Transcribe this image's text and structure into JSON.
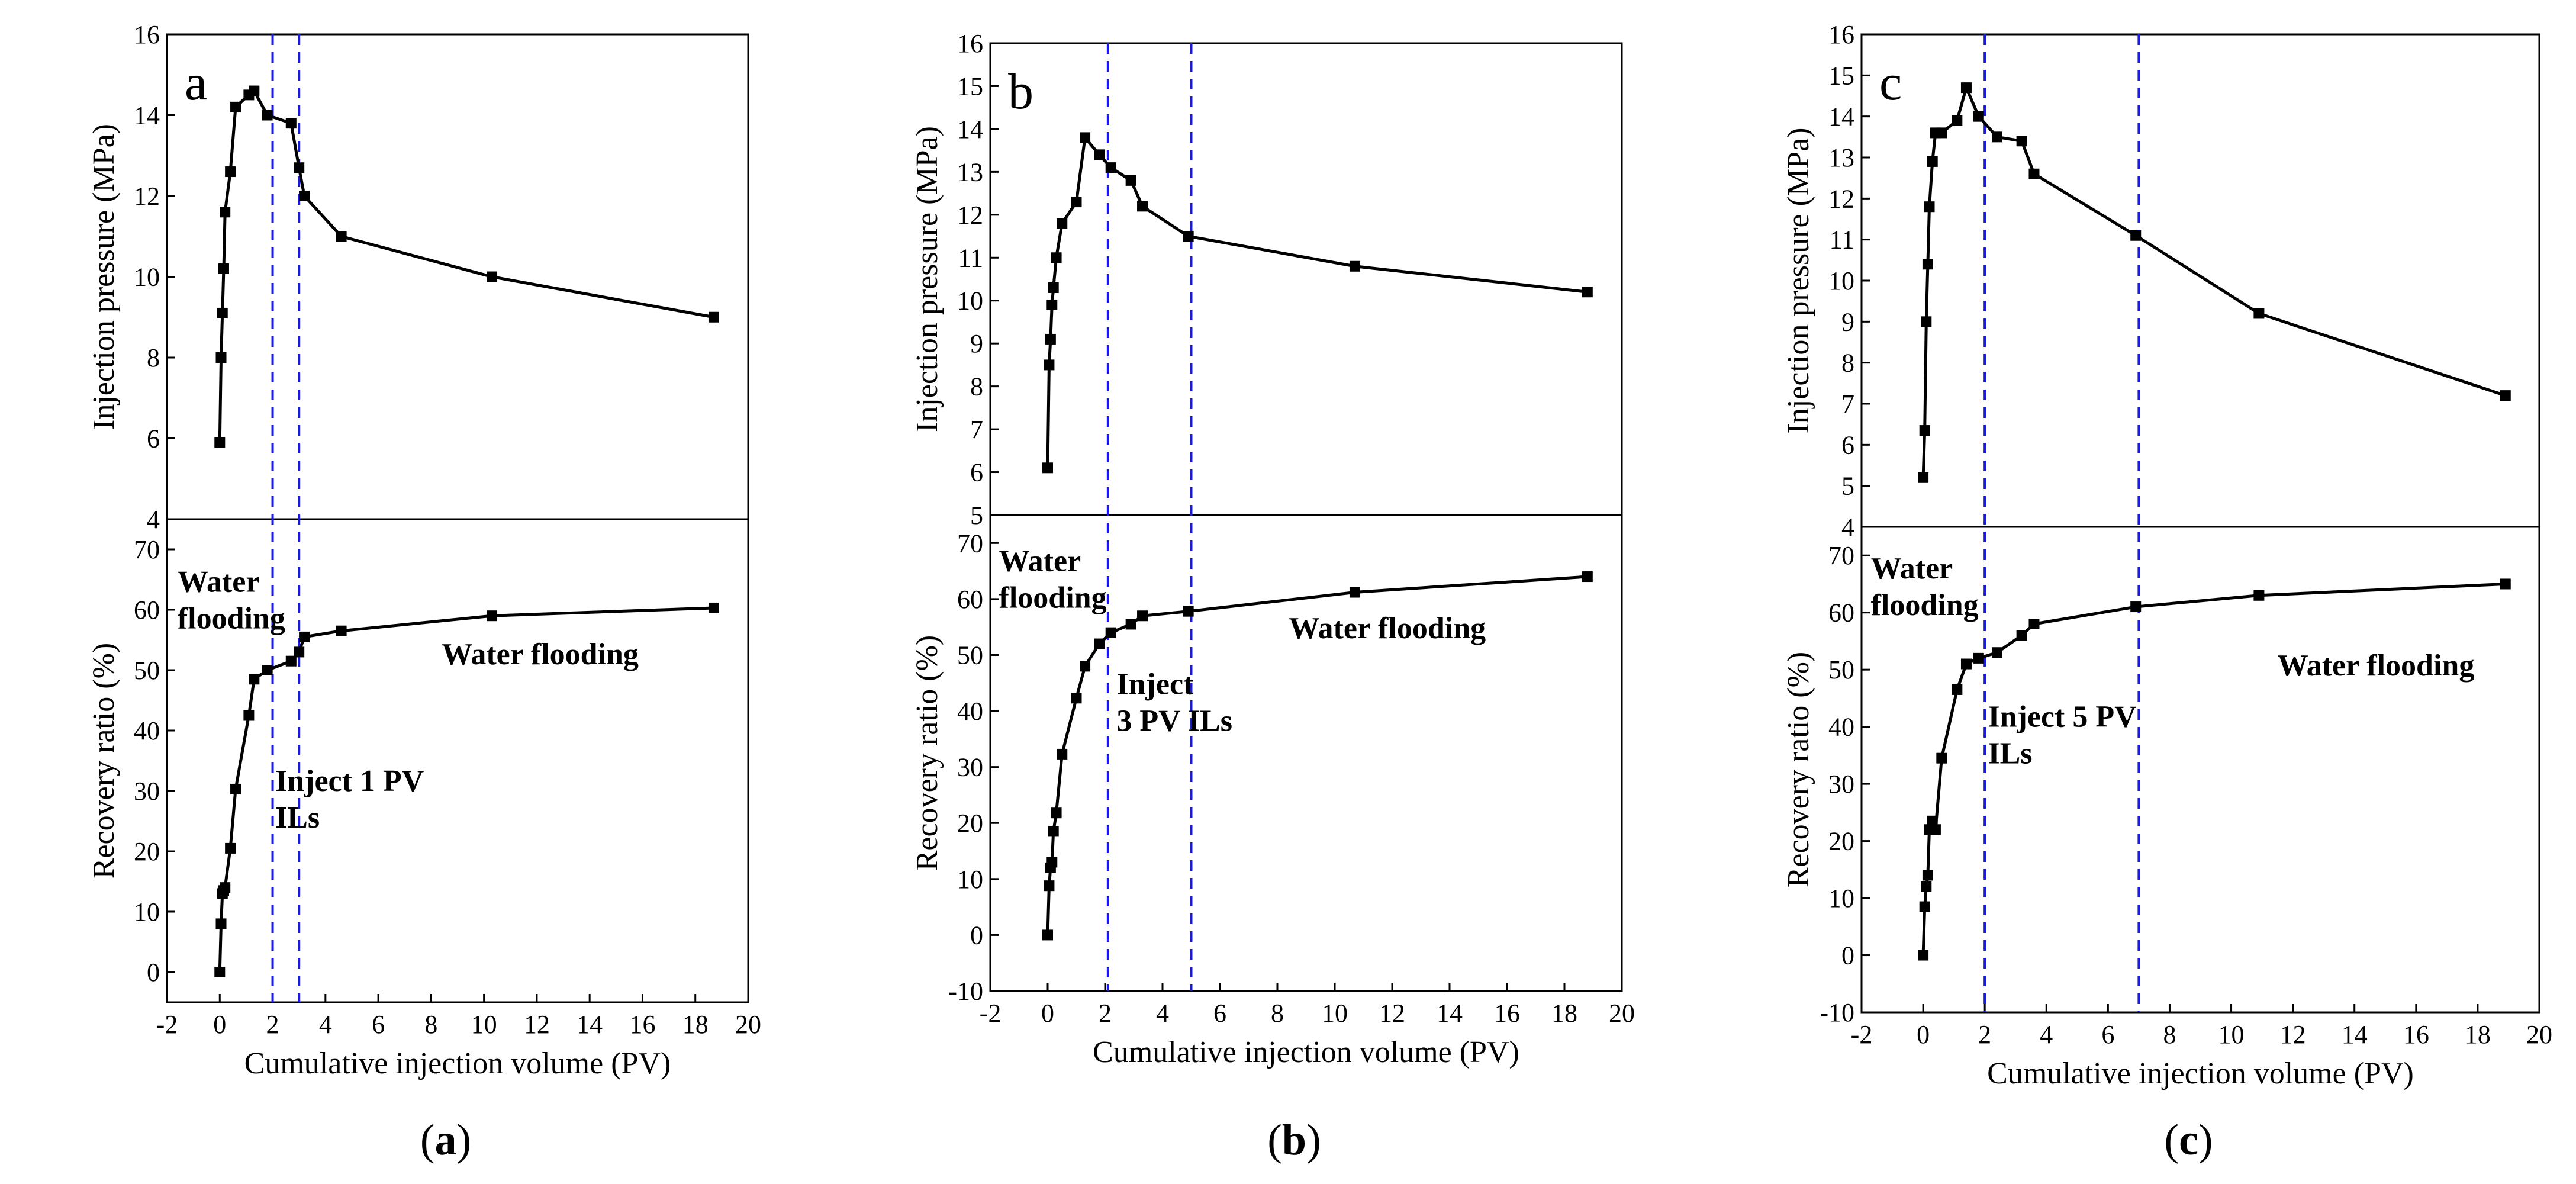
{
  "chart_data": [
    {
      "type": "line",
      "panel_label": "a",
      "caption": "a",
      "xlabel": "Cumulative injection volume (PV)",
      "xlim": [
        -2,
        20
      ],
      "xticks": [
        -2,
        0,
        2,
        4,
        6,
        8,
        10,
        12,
        14,
        16,
        18,
        20
      ],
      "vlines": [
        2.0,
        3.0
      ],
      "top": {
        "ylabel": "Injection pressure (MPa)",
        "ylim": [
          4,
          16
        ],
        "yticks": [
          4,
          6,
          8,
          10,
          12,
          14,
          16
        ],
        "x": [
          0,
          0.05,
          0.1,
          0.15,
          0.2,
          0.4,
          0.6,
          1.1,
          1.3,
          1.8,
          2.7,
          3.0,
          3.2,
          4.6,
          10.3,
          18.7
        ],
        "y": [
          5.9,
          8.0,
          9.1,
          10.2,
          11.6,
          12.6,
          14.2,
          14.5,
          14.6,
          14.0,
          13.8,
          12.7,
          12.0,
          11.0,
          10.0,
          9.0
        ]
      },
      "bottom": {
        "ylabel": "Recovery ratio (%)",
        "ylim": [
          -5,
          75
        ],
        "yticks": [
          0,
          10,
          20,
          30,
          40,
          50,
          60,
          70
        ],
        "x": [
          0,
          0.05,
          0.1,
          0.15,
          0.2,
          0.4,
          0.6,
          1.1,
          1.3,
          1.8,
          2.7,
          3.0,
          3.2,
          4.6,
          10.3,
          18.7
        ],
        "y": [
          0,
          8,
          13,
          13.5,
          14,
          20.5,
          30.3,
          42.5,
          48.5,
          50,
          51.5,
          53,
          55.5,
          56.5,
          59,
          60.3
        ]
      },
      "annotations": [
        {
          "lines": [
            "Water",
            "flooding"
          ],
          "x": -1.6,
          "y": 63
        },
        {
          "lines": [
            "Inject 1 PV",
            "ILs"
          ],
          "x": 2.1,
          "y": 30
        },
        {
          "lines": [
            "Water flooding"
          ],
          "x": 8.4,
          "y": 51
        }
      ]
    },
    {
      "type": "line",
      "panel_label": "b",
      "caption": "b",
      "xlabel": "Cumulative injection volume (PV)",
      "xlim": [
        -2,
        20
      ],
      "xticks": [
        -2,
        0,
        2,
        4,
        6,
        8,
        10,
        12,
        14,
        16,
        18,
        20
      ],
      "vlines": [
        2.1,
        5.0
      ],
      "top": {
        "ylabel": "Injection pressure (MPa)",
        "ylim": [
          5,
          16
        ],
        "yticks": [
          5,
          6,
          7,
          8,
          9,
          10,
          11,
          12,
          13,
          14,
          15,
          16
        ],
        "x": [
          0,
          0.05,
          0.1,
          0.15,
          0.2,
          0.3,
          0.5,
          1.0,
          1.3,
          1.8,
          2.2,
          2.9,
          3.3,
          4.9,
          10.7,
          18.8
        ],
        "y": [
          6.1,
          8.5,
          9.1,
          9.9,
          10.3,
          11.0,
          11.8,
          12.3,
          13.8,
          13.4,
          13.1,
          12.8,
          12.2,
          11.5,
          10.8,
          10.2
        ]
      },
      "bottom": {
        "ylabel": "Recovery ratio (%)",
        "ylim": [
          -10,
          75
        ],
        "yticks": [
          -10,
          0,
          10,
          20,
          30,
          40,
          50,
          60,
          70
        ],
        "x": [
          0,
          0.05,
          0.1,
          0.15,
          0.2,
          0.3,
          0.5,
          1.0,
          1.3,
          1.8,
          2.2,
          2.9,
          3.3,
          4.9,
          10.7,
          18.8
        ],
        "y": [
          0,
          8.8,
          12,
          13,
          18.5,
          21.8,
          32.3,
          42.3,
          48,
          52,
          54,
          55.5,
          57,
          57.8,
          61.2,
          64
        ]
      },
      "annotations": [
        {
          "lines": [
            "Water",
            "flooding"
          ],
          "x": -1.7,
          "y": 65
        },
        {
          "lines": [
            "Inject",
            "3 PV ILs"
          ],
          "x": 2.4,
          "y": 43
        },
        {
          "lines": [
            "Water flooding"
          ],
          "x": 8.4,
          "y": 53
        }
      ]
    },
    {
      "type": "line",
      "panel_label": "c",
      "caption": "c",
      "xlabel": "Cumulative injection volume (PV)",
      "xlim": [
        -2,
        20
      ],
      "xticks": [
        -2,
        0,
        2,
        4,
        6,
        8,
        10,
        12,
        14,
        16,
        18,
        20
      ],
      "vlines": [
        2.0,
        7.0
      ],
      "top": {
        "ylabel": "Injection pressure (MPa)",
        "ylim": [
          4,
          16
        ],
        "yticks": [
          4,
          5,
          6,
          7,
          8,
          9,
          10,
          11,
          12,
          13,
          14,
          15,
          16
        ],
        "x": [
          0,
          0.05,
          0.1,
          0.15,
          0.2,
          0.3,
          0.4,
          0.6,
          1.1,
          1.4,
          1.8,
          2.4,
          3.2,
          3.6,
          6.9,
          10.9,
          18.9
        ],
        "y": [
          5.2,
          6.35,
          9.0,
          10.4,
          11.8,
          12.9,
          13.6,
          13.6,
          13.9,
          14.7,
          14.0,
          13.5,
          13.4,
          12.6,
          11.1,
          9.2,
          7.2
        ]
      },
      "bottom": {
        "ylabel": "Recovery ratio (%)",
        "ylim": [
          -10,
          75
        ],
        "yticks": [
          -10,
          0,
          10,
          20,
          30,
          40,
          50,
          60,
          70
        ],
        "x": [
          0,
          0.05,
          0.1,
          0.15,
          0.2,
          0.3,
          0.4,
          0.6,
          1.1,
          1.4,
          1.8,
          2.4,
          3.2,
          3.6,
          6.9,
          10.9,
          18.9
        ],
        "y": [
          0,
          8.5,
          12,
          14,
          22,
          23.5,
          22,
          34.5,
          46.5,
          51,
          52,
          53,
          56,
          58,
          61,
          63,
          65
        ]
      },
      "annotations": [
        {
          "lines": [
            "Water",
            "flooding"
          ],
          "x": -1.7,
          "y": 66
        },
        {
          "lines": [
            "Inject 5 PV",
            "ILs"
          ],
          "x": 2.1,
          "y": 40
        },
        {
          "lines": [
            "Water flooding"
          ],
          "x": 11.5,
          "y": 49
        }
      ]
    }
  ]
}
